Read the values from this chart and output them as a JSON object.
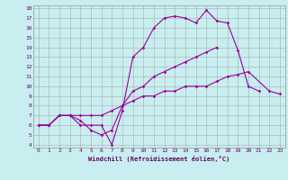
{
  "xlabel": "Windchill (Refroidissement éolien,°C)",
  "bg_color": "#c8eef0",
  "line_color": "#990099",
  "grid_color": "#aaaaaa",
  "xlim": [
    -0.5,
    23.5
  ],
  "ylim": [
    3.7,
    18.3
  ],
  "xticks": [
    0,
    1,
    2,
    3,
    4,
    5,
    6,
    7,
    8,
    9,
    10,
    11,
    12,
    13,
    14,
    15,
    16,
    17,
    18,
    19,
    20,
    21,
    22,
    23
  ],
  "yticks": [
    4,
    5,
    6,
    7,
    8,
    9,
    10,
    11,
    12,
    13,
    14,
    15,
    16,
    17,
    18
  ],
  "lines": [
    {
      "x": [
        0,
        1,
        2,
        3,
        4,
        5,
        6,
        7,
        8,
        9,
        10,
        11,
        12,
        13,
        14,
        15,
        16,
        17,
        18,
        19,
        20,
        21
      ],
      "y": [
        6,
        6,
        7,
        7,
        6,
        6,
        6,
        4,
        7.5,
        13,
        14,
        16,
        17,
        17.2,
        17,
        16.5,
        17.8,
        16.7,
        16.5,
        13.7,
        10,
        9.5
      ]
    },
    {
      "x": [
        0,
        1,
        2,
        3,
        4,
        5,
        6,
        7,
        8,
        9,
        10,
        11,
        12,
        13,
        14,
        15,
        16,
        17
      ],
      "y": [
        6,
        6,
        7,
        7,
        6.5,
        5.5,
        5,
        5.5,
        8,
        9.5,
        10,
        11,
        11.5,
        12,
        12.5,
        13,
        13.5,
        14
      ]
    },
    {
      "x": [
        0,
        1,
        2,
        3,
        4,
        5,
        6,
        7,
        8,
        9,
        10,
        11,
        12,
        13,
        14,
        15,
        16,
        17,
        18,
        19,
        20,
        22,
        23
      ],
      "y": [
        6,
        6,
        7,
        7,
        7,
        7,
        7,
        7.5,
        8,
        8.5,
        9,
        9,
        9.5,
        9.5,
        10,
        10,
        10,
        10.5,
        11,
        11.2,
        11.5,
        9.5,
        9.2
      ]
    }
  ]
}
